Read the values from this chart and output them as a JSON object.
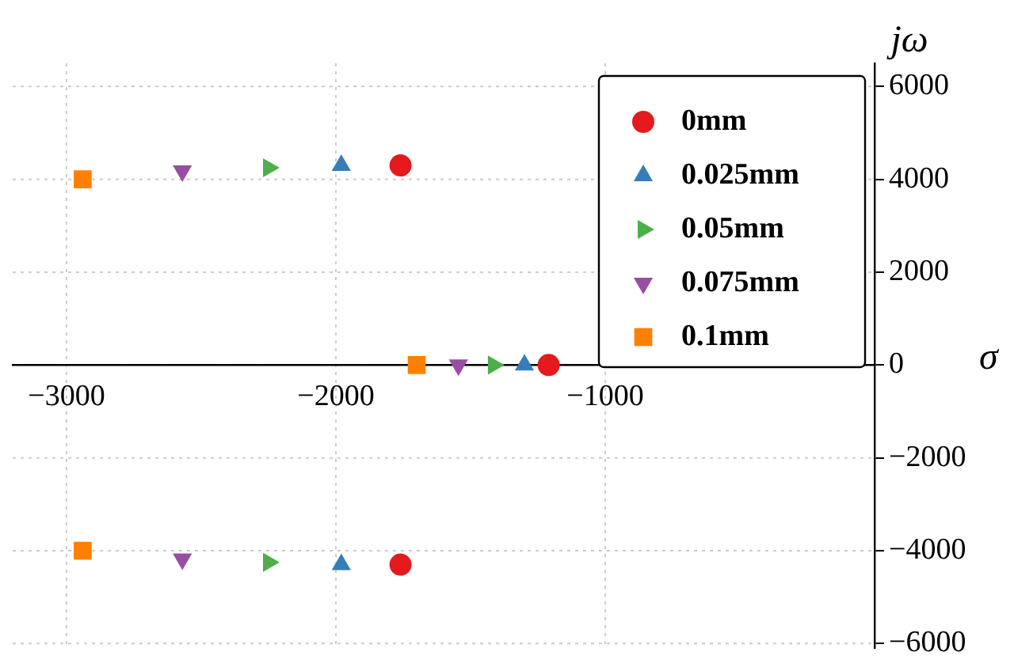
{
  "chart_data": {
    "type": "scatter",
    "xlabel": "σ",
    "ylabel": "jω",
    "xlim": [
      -3200,
      0
    ],
    "ylim": [
      -6100,
      6500
    ],
    "xticks": [
      -3000,
      -2000,
      -1000
    ],
    "yticks": [
      -6000,
      -4000,
      -2000,
      0,
      2000,
      4000,
      6000
    ],
    "grid": true,
    "legend": "top right",
    "series": [
      {
        "name": "0mm",
        "color": "#e41a1c",
        "marker": "circle",
        "x": [
          -1760,
          -1210,
          -1760
        ],
        "values": [
          4300,
          0,
          -4300
        ]
      },
      {
        "name": "0.025mm",
        "color": "#377eb8",
        "marker": "triangle",
        "x": [
          -1980,
          -1300,
          -1980
        ],
        "values": [
          4300,
          0,
          -4300
        ]
      },
      {
        "name": "0.05mm",
        "color": "#4daf4a",
        "marker": "triangle-right",
        "x": [
          -2250,
          -1415,
          -2250
        ],
        "values": [
          4250,
          0,
          -4250
        ]
      },
      {
        "name": "0.075mm",
        "color": "#984ea3",
        "marker": "triangle-down",
        "x": [
          -2570,
          -1545,
          -2570
        ],
        "values": [
          4180,
          0,
          -4180
        ]
      },
      {
        "name": "0.1mm",
        "color": "#ff7f00",
        "marker": "square",
        "x": [
          -2940,
          -1700,
          -2940
        ],
        "values": [
          4000,
          0,
          -4000
        ]
      }
    ]
  }
}
